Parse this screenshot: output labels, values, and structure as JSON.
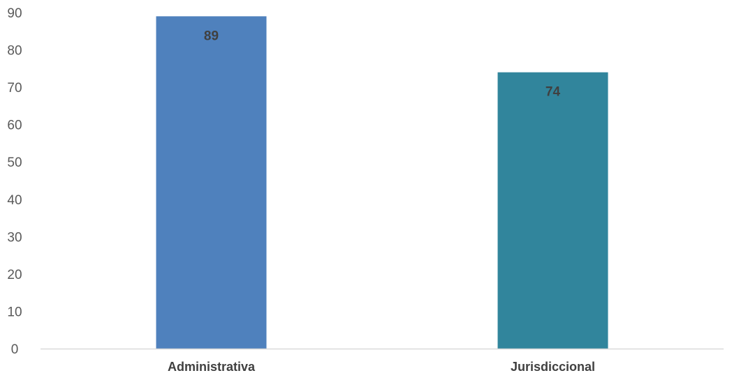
{
  "chart_data": {
    "type": "bar",
    "title": "",
    "xlabel": "",
    "ylabel": "",
    "categories": [
      "Administrativa",
      "Jurisdiccional"
    ],
    "values": [
      89,
      74
    ],
    "ylim": [
      0,
      90
    ],
    "yticks": [
      0,
      10,
      20,
      30,
      40,
      50,
      60,
      70,
      80,
      90
    ],
    "grid": false,
    "legend": "none",
    "data_labels": [
      "89",
      "74"
    ],
    "bar_colors": [
      "#4F81BD",
      "#31859C"
    ],
    "axis_color": "#D9D9D9",
    "tick_label_color": "#595959",
    "data_label_color": "#404040"
  }
}
